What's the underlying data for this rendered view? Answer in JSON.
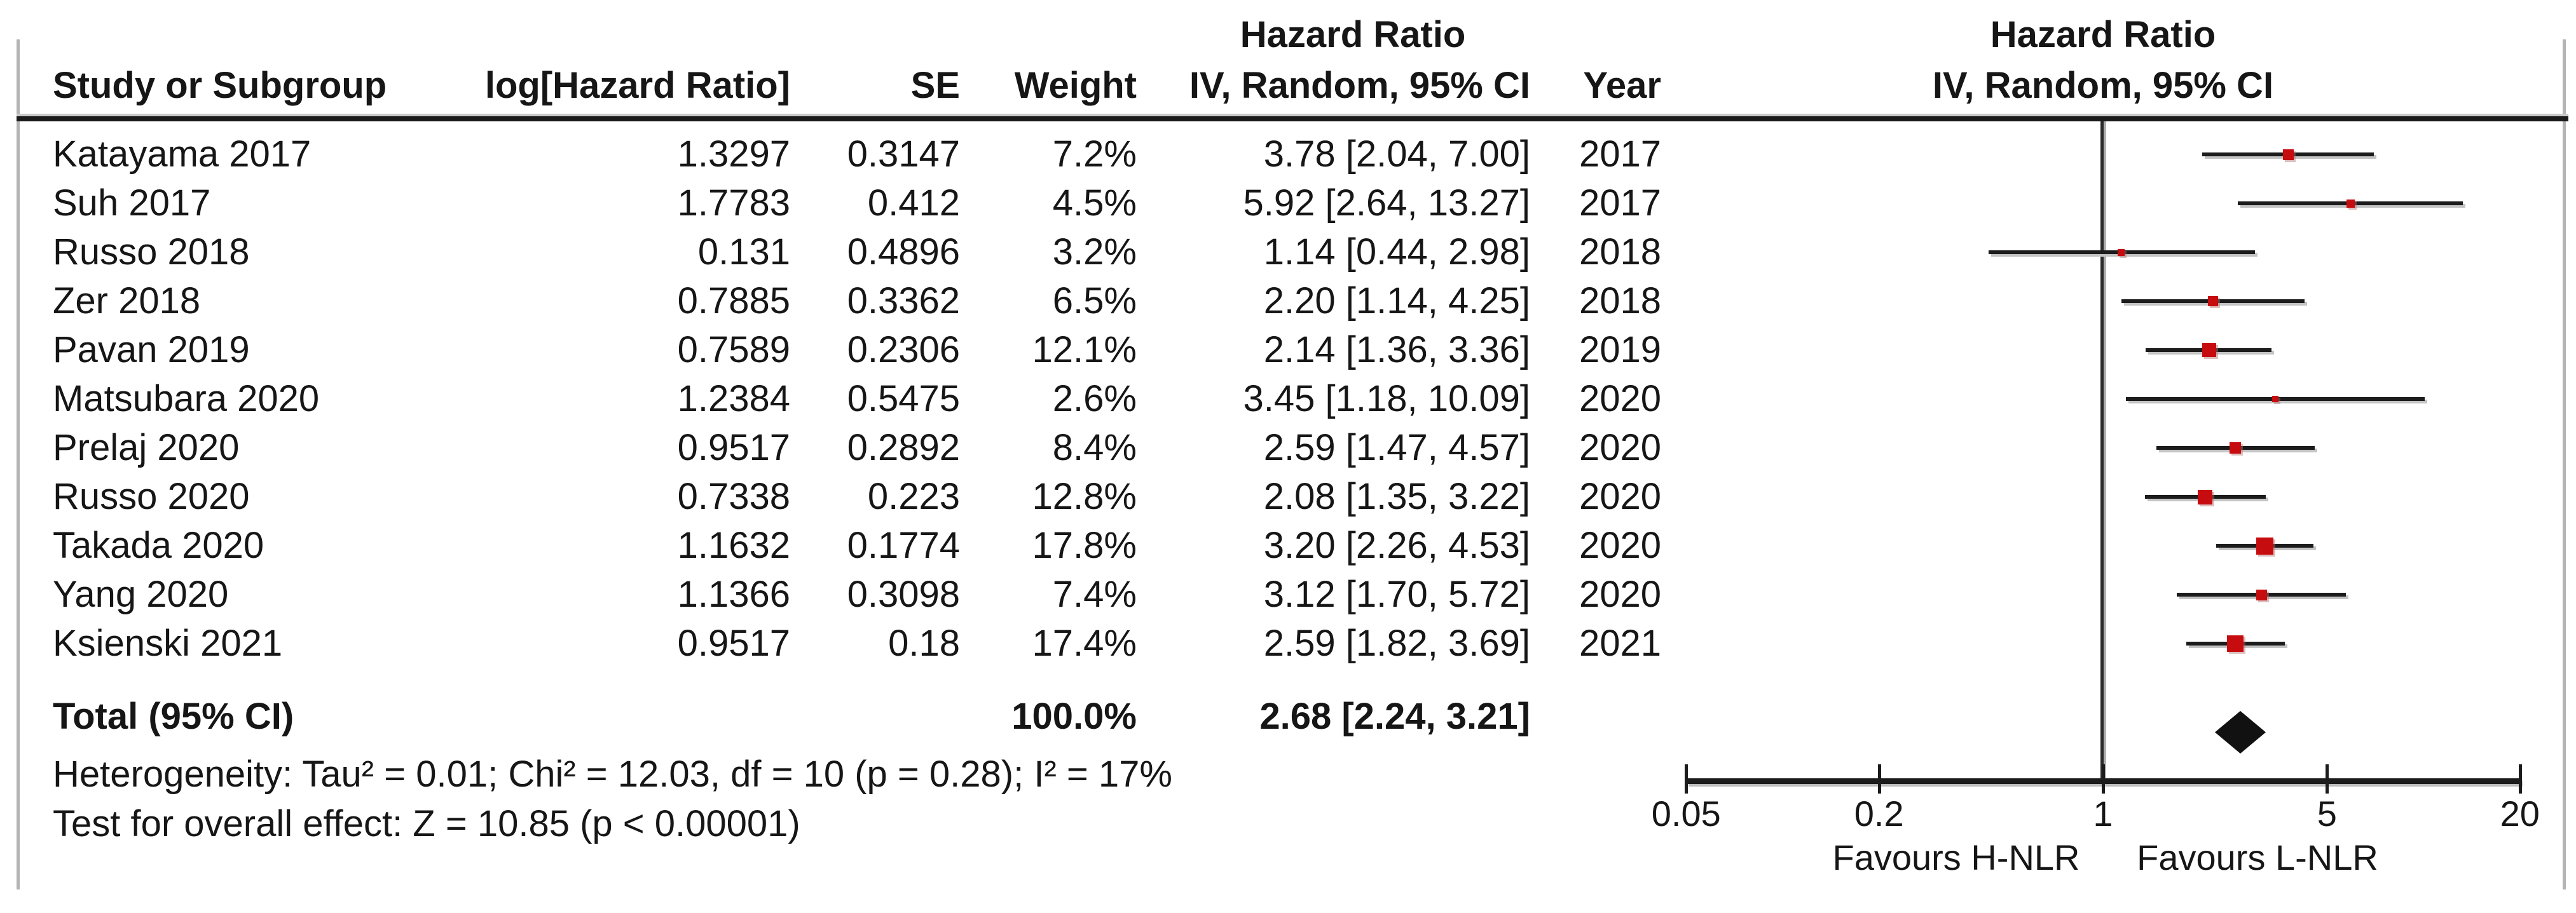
{
  "figure": {
    "columns": {
      "hazard_ratio_header": "Hazard Ratio",
      "study": "Study or Subgroup",
      "log_hr": "log[Hazard Ratio]",
      "se": "SE",
      "weight": "Weight",
      "iv_ci": "IV, Random, 95% CI",
      "year": "Year"
    },
    "plot_header": {
      "line1": "Hazard Ratio",
      "line2": "IV, Random, 95% CI"
    },
    "colors": {
      "marker_red": "#c60c0f",
      "line_black": "#1c1c1c",
      "shadow_gray": "#bdbdbd",
      "diamond_black": "#111111"
    }
  },
  "chart_data": {
    "type": "scatter",
    "variant": "forest-plot",
    "effect_measure": "Hazard Ratio",
    "model": "IV, Random, 95% CI",
    "x_scale": "log",
    "xlim": [
      0.05,
      20
    ],
    "axis_ticks": [
      "0.05",
      "0.2",
      "1",
      "5",
      "20"
    ],
    "axis_tick_values": [
      0.05,
      0.2,
      1,
      5,
      20
    ],
    "favours_left": "Favours H-NLR",
    "favours_right": "Favours L-NLR",
    "studies": [
      {
        "study": "Katayama 2017",
        "log_hr": "1.3297",
        "se": "0.3147",
        "weight_label": "7.2%",
        "weight_pct": 7.2,
        "ci_label": "3.78 [2.04, 7.00]",
        "year": "2017",
        "hr": 3.78,
        "lo": 2.04,
        "hi": 7.0
      },
      {
        "study": "Suh 2017",
        "log_hr": "1.7783",
        "se": "0.412",
        "weight_label": "4.5%",
        "weight_pct": 4.5,
        "ci_label": "5.92 [2.64, 13.27]",
        "year": "2017",
        "hr": 5.92,
        "lo": 2.64,
        "hi": 13.27
      },
      {
        "study": "Russo 2018",
        "log_hr": "0.131",
        "se": "0.4896",
        "weight_label": "3.2%",
        "weight_pct": 3.2,
        "ci_label": "1.14 [0.44, 2.98]",
        "year": "2018",
        "hr": 1.14,
        "lo": 0.44,
        "hi": 2.98
      },
      {
        "study": "Zer 2018",
        "log_hr": "0.7885",
        "se": "0.3362",
        "weight_label": "6.5%",
        "weight_pct": 6.5,
        "ci_label": "2.20 [1.14, 4.25]",
        "year": "2018",
        "hr": 2.2,
        "lo": 1.14,
        "hi": 4.25
      },
      {
        "study": "Pavan 2019",
        "log_hr": "0.7589",
        "se": "0.2306",
        "weight_label": "12.1%",
        "weight_pct": 12.1,
        "ci_label": "2.14 [1.36, 3.36]",
        "year": "2019",
        "hr": 2.14,
        "lo": 1.36,
        "hi": 3.36
      },
      {
        "study": "Matsubara 2020",
        "log_hr": "1.2384",
        "se": "0.5475",
        "weight_label": "2.6%",
        "weight_pct": 2.6,
        "ci_label": "3.45 [1.18, 10.09]",
        "year": "2020",
        "hr": 3.45,
        "lo": 1.18,
        "hi": 10.09
      },
      {
        "study": "Prelaj 2020",
        "log_hr": "0.9517",
        "se": "0.2892",
        "weight_label": "8.4%",
        "weight_pct": 8.4,
        "ci_label": "2.59 [1.47, 4.57]",
        "year": "2020",
        "hr": 2.59,
        "lo": 1.47,
        "hi": 4.57
      },
      {
        "study": "Russo 2020",
        "log_hr": "0.7338",
        "se": "0.223",
        "weight_label": "12.8%",
        "weight_pct": 12.8,
        "ci_label": "2.08 [1.35, 3.22]",
        "year": "2020",
        "hr": 2.08,
        "lo": 1.35,
        "hi": 3.22
      },
      {
        "study": "Takada 2020",
        "log_hr": "1.1632",
        "se": "0.1774",
        "weight_label": "17.8%",
        "weight_pct": 17.8,
        "ci_label": "3.20 [2.26, 4.53]",
        "year": "2020",
        "hr": 3.2,
        "lo": 2.26,
        "hi": 4.53
      },
      {
        "study": "Yang 2020",
        "log_hr": "1.1366",
        "se": "0.3098",
        "weight_label": "7.4%",
        "weight_pct": 7.4,
        "ci_label": "3.12 [1.70, 5.72]",
        "year": "2020",
        "hr": 3.12,
        "lo": 1.7,
        "hi": 5.72
      },
      {
        "study": "Ksienski 2021",
        "log_hr": "0.9517",
        "se": "0.18",
        "weight_label": "17.4%",
        "weight_pct": 17.4,
        "ci_label": "2.59 [1.82, 3.69]",
        "year": "2021",
        "hr": 2.59,
        "lo": 1.82,
        "hi": 3.69
      }
    ],
    "total": {
      "label": "Total (95% CI)",
      "weight_label": "100.0%",
      "ci_label": "2.68 [2.24, 3.21]",
      "hr": 2.68,
      "lo": 2.24,
      "hi": 3.21
    },
    "heterogeneity": "Heterogeneity: Tau² = 0.01; Chi² = 12.03, df = 10 (p = 0.28); I² = 17%",
    "overall_effect": "Test for overall effect: Z = 10.85 (p < 0.00001)"
  }
}
